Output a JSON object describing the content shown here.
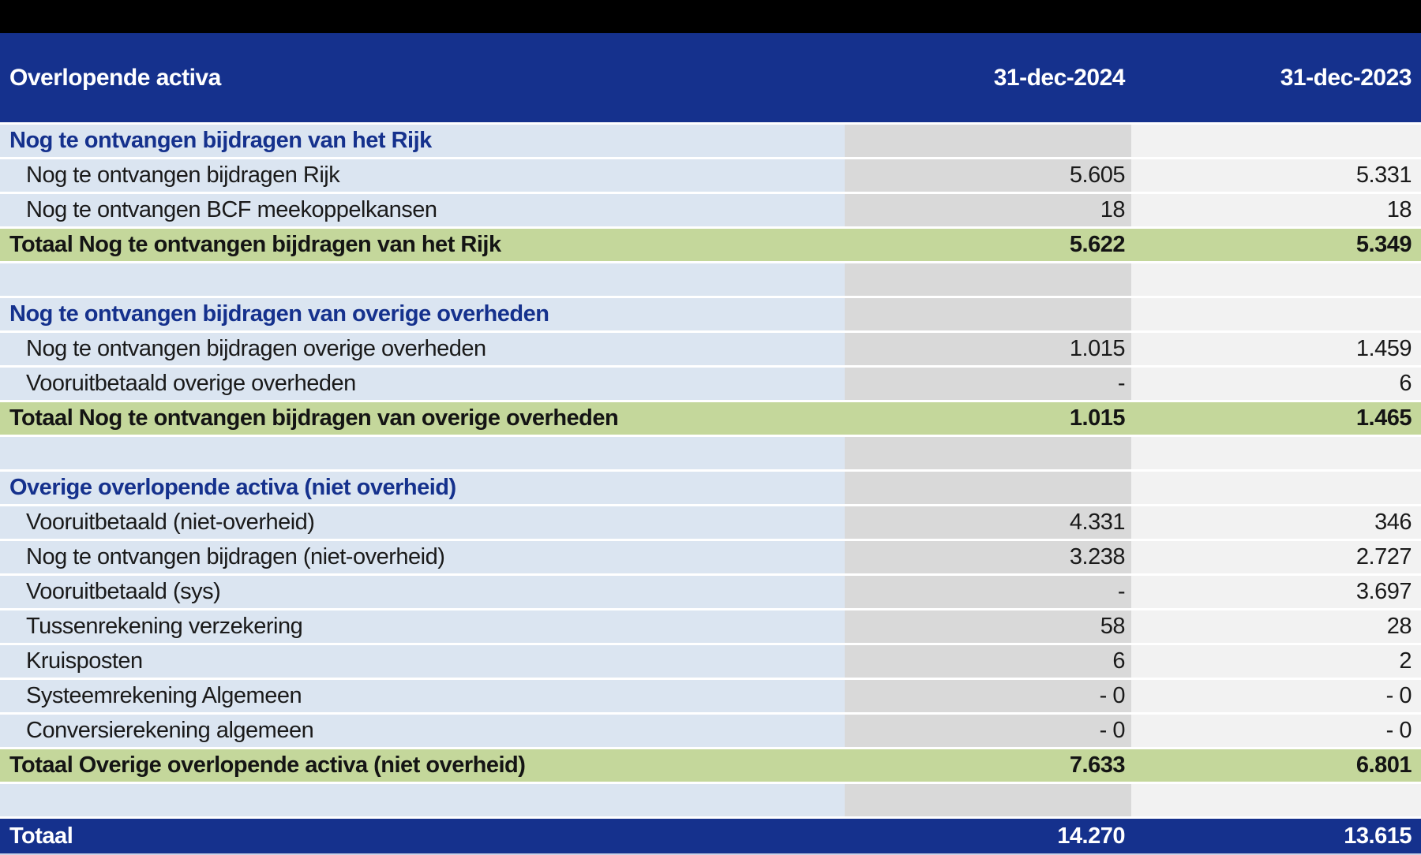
{
  "title": "Overlopende activa",
  "columns": {
    "c2024": "31-dec-2024",
    "c2023": "31-dec-2023"
  },
  "colors": {
    "header_blue": "#15318d",
    "row_light_blue": "#dbe5f1",
    "col2024_gray": "#d9d9d9",
    "col2023_light_gray": "#f2f2f2",
    "total_green": "#c4d79b",
    "top_bar_black": "#000000",
    "bottom_strip": "#ccd3e6",
    "section_text_blue": "#15318d"
  },
  "sections": [
    {
      "header": "Nog te ontvangen bijdragen van het Rijk",
      "rows": [
        {
          "label": "Nog te ontvangen bijdragen Rijk",
          "v2024": "5.605",
          "v2023": "5.331"
        },
        {
          "label": "Nog te ontvangen BCF meekoppelkansen",
          "v2024": "18",
          "v2023": "18"
        }
      ],
      "total": {
        "label": "Totaal Nog te ontvangen bijdragen van het Rijk",
        "v2024": "5.622",
        "v2023": "5.349"
      }
    },
    {
      "header": "Nog te ontvangen bijdragen van overige overheden",
      "rows": [
        {
          "label": "Nog te ontvangen bijdragen overige overheden",
          "v2024": "1.015",
          "v2023": "1.459"
        },
        {
          "label": "Vooruitbetaald overige overheden",
          "v2024": "-",
          "v2023": "6"
        }
      ],
      "total": {
        "label": "Totaal Nog te ontvangen bijdragen van overige overheden",
        "v2024": "1.015",
        "v2023": "1.465"
      }
    },
    {
      "header": "Overige overlopende activa (niet overheid)",
      "rows": [
        {
          "label": "Vooruitbetaald (niet-overheid)",
          "v2024": "4.331",
          "v2023": "346"
        },
        {
          "label": "Nog te ontvangen bijdragen (niet-overheid)",
          "v2024": "3.238",
          "v2023": "2.727"
        },
        {
          "label": "Vooruitbetaald (sys)",
          "v2024": "-",
          "v2023": "3.697"
        },
        {
          "label": "Tussenrekening verzekering",
          "v2024": "58",
          "v2023": "28"
        },
        {
          "label": "Kruisposten",
          "v2024": "6",
          "v2023": "2"
        },
        {
          "label": "Systeemrekening Algemeen",
          "v2024": "- 0",
          "v2023": "- 0"
        },
        {
          "label": "Conversierekening algemeen",
          "v2024": "- 0",
          "v2023": "- 0"
        }
      ],
      "total": {
        "label": "Totaal Overige overlopende activa (niet overheid)",
        "v2024": "7.633",
        "v2023": "6.801"
      }
    }
  ],
  "grand_total": {
    "label": "Totaal",
    "v2024": "14.270",
    "v2023": "13.615"
  }
}
